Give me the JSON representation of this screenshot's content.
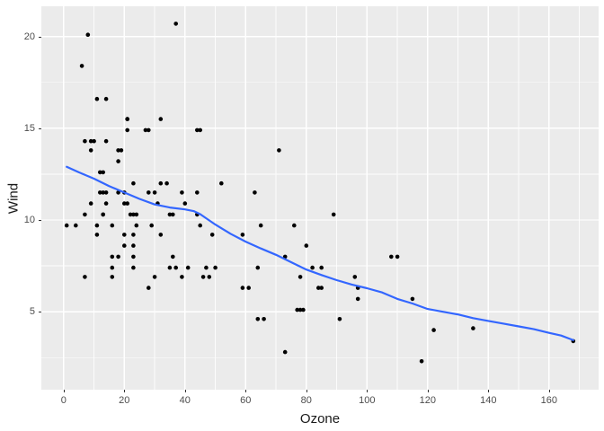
{
  "chart_data": {
    "type": "scatter",
    "title": "",
    "xlabel": "Ozone",
    "ylabel": "Wind",
    "legend_position": "none",
    "grid": true,
    "panel_bg": "#EBEBEB",
    "grid_color": "#FFFFFF",
    "point_color": "#000000",
    "smooth_color": "#3366FF",
    "tick_text_color": "#4D4D4D",
    "axis_title_color": "#1A1A1A",
    "tick_mark_color": "#333333",
    "xlim": [
      -7.35,
      176.35
    ],
    "ylim": [
      0.75,
      21.65
    ],
    "x_major_ticks": [
      0,
      20,
      40,
      60,
      80,
      100,
      120,
      140,
      160
    ],
    "y_major_ticks": [
      5,
      10,
      15,
      20
    ],
    "x_minor_gridlines": [
      10,
      30,
      50,
      70,
      90,
      110,
      130,
      150,
      170
    ],
    "y_minor_gridlines": [
      2.5,
      7.5,
      12.5,
      17.5
    ],
    "series": [
      {
        "name": "observations",
        "type": "points",
        "data": [
          [
            41,
            7.4
          ],
          [
            36,
            8.0
          ],
          [
            12,
            12.6
          ],
          [
            18,
            11.5
          ],
          [
            28,
            14.9
          ],
          [
            23,
            8.6
          ],
          [
            19,
            13.8
          ],
          [
            8,
            20.1
          ],
          [
            7,
            6.9
          ],
          [
            16,
            9.7
          ],
          [
            11,
            9.2
          ],
          [
            14,
            10.9
          ],
          [
            18,
            13.2
          ],
          [
            14,
            11.5
          ],
          [
            34,
            12.0
          ],
          [
            6,
            18.4
          ],
          [
            30,
            11.5
          ],
          [
            11,
            9.7
          ],
          [
            1,
            9.7
          ],
          [
            11,
            16.6
          ],
          [
            4,
            9.7
          ],
          [
            32,
            12.0
          ],
          [
            23,
            12.0
          ],
          [
            45,
            14.9
          ],
          [
            115,
            5.7
          ],
          [
            37,
            7.4
          ],
          [
            29,
            9.7
          ],
          [
            71,
            13.8
          ],
          [
            39,
            11.5
          ],
          [
            23,
            8.0
          ],
          [
            21,
            14.9
          ],
          [
            37,
            20.7
          ],
          [
            20,
            9.2
          ],
          [
            12,
            11.5
          ],
          [
            13,
            10.3
          ],
          [
            135,
            4.1
          ],
          [
            49,
            9.2
          ],
          [
            32,
            9.2
          ],
          [
            64,
            4.6
          ],
          [
            40,
            10.9
          ],
          [
            77,
            5.1
          ],
          [
            97,
            6.3
          ],
          [
            97,
            5.7
          ],
          [
            85,
            7.4
          ],
          [
            10,
            14.3
          ],
          [
            27,
            14.9
          ],
          [
            7,
            14.3
          ],
          [
            48,
            6.9
          ],
          [
            35,
            10.3
          ],
          [
            61,
            6.3
          ],
          [
            79,
            5.1
          ],
          [
            63,
            11.5
          ],
          [
            16,
            6.9
          ],
          [
            80,
            8.6
          ],
          [
            108,
            8.0
          ],
          [
            20,
            8.6
          ],
          [
            52,
            12.0
          ],
          [
            82,
            7.4
          ],
          [
            50,
            7.4
          ],
          [
            64,
            7.4
          ],
          [
            59,
            9.2
          ],
          [
            39,
            6.9
          ],
          [
            9,
            13.8
          ],
          [
            16,
            7.4
          ],
          [
            78,
            6.9
          ],
          [
            35,
            7.4
          ],
          [
            66,
            4.6
          ],
          [
            122,
            4.0
          ],
          [
            89,
            10.3
          ],
          [
            110,
            8.0
          ],
          [
            44,
            11.5
          ],
          [
            28,
            11.5
          ],
          [
            65,
            9.7
          ],
          [
            22,
            10.3
          ],
          [
            59,
            6.3
          ],
          [
            23,
            7.4
          ],
          [
            31,
            10.9
          ],
          [
            44,
            10.3
          ],
          [
            21,
            15.5
          ],
          [
            9,
            14.3
          ],
          [
            45,
            9.7
          ],
          [
            168,
            3.4
          ],
          [
            73,
            8.0
          ],
          [
            76,
            9.7
          ],
          [
            118,
            2.3
          ],
          [
            84,
            6.3
          ],
          [
            85,
            6.3
          ],
          [
            96,
            6.9
          ],
          [
            78,
            5.1
          ],
          [
            73,
            2.8
          ],
          [
            91,
            4.6
          ],
          [
            47,
            7.4
          ],
          [
            32,
            15.5
          ],
          [
            20,
            10.9
          ],
          [
            23,
            10.3
          ],
          [
            21,
            10.9
          ],
          [
            24,
            9.7
          ],
          [
            44,
            14.9
          ],
          [
            21,
            15.5
          ],
          [
            28,
            6.3
          ],
          [
            9,
            10.9
          ],
          [
            13,
            11.5
          ],
          [
            46,
            6.9
          ],
          [
            18,
            13.8
          ],
          [
            13,
            10.3
          ],
          [
            24,
            10.3
          ],
          [
            16,
            8.0
          ],
          [
            13,
            12.6
          ],
          [
            23,
            9.2
          ],
          [
            36,
            10.3
          ],
          [
            7,
            10.3
          ],
          [
            14,
            16.6
          ],
          [
            30,
            6.9
          ],
          [
            14,
            14.3
          ],
          [
            18,
            8.0
          ],
          [
            20,
            11.5
          ]
        ]
      },
      {
        "name": "loess-smooth",
        "type": "line",
        "data": [
          [
            1,
            12.9
          ],
          [
            5,
            12.6
          ],
          [
            10,
            12.25
          ],
          [
            15,
            11.85
          ],
          [
            20,
            11.5
          ],
          [
            25,
            11.15
          ],
          [
            30,
            10.85
          ],
          [
            35,
            10.68
          ],
          [
            40,
            10.58
          ],
          [
            43,
            10.48
          ],
          [
            45,
            10.32
          ],
          [
            50,
            9.75
          ],
          [
            55,
            9.25
          ],
          [
            60,
            8.82
          ],
          [
            65,
            8.45
          ],
          [
            70,
            8.1
          ],
          [
            75,
            7.7
          ],
          [
            80,
            7.3
          ],
          [
            85,
            7.0
          ],
          [
            90,
            6.72
          ],
          [
            95,
            6.48
          ],
          [
            100,
            6.28
          ],
          [
            105,
            6.05
          ],
          [
            110,
            5.7
          ],
          [
            115,
            5.45
          ],
          [
            120,
            5.15
          ],
          [
            125,
            5.0
          ],
          [
            130,
            4.85
          ],
          [
            135,
            4.65
          ],
          [
            140,
            4.5
          ],
          [
            145,
            4.35
          ],
          [
            150,
            4.2
          ],
          [
            155,
            4.05
          ],
          [
            160,
            3.85
          ],
          [
            164,
            3.7
          ],
          [
            168,
            3.45
          ]
        ]
      }
    ]
  }
}
